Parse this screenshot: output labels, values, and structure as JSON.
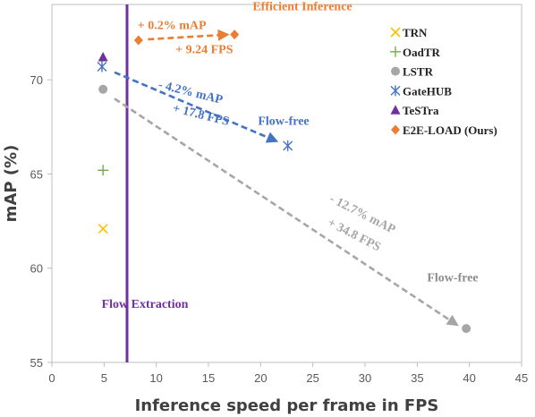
{
  "chart_data": {
    "type": "scatter",
    "xlabel": "Inference speed per frame in FPS",
    "ylabel": "mAP (%)",
    "xlim": [
      0,
      45
    ],
    "ylim": [
      55,
      74
    ],
    "x_ticks": [
      "0",
      "5",
      "10",
      "15",
      "20",
      "25",
      "30",
      "35",
      "40",
      "45"
    ],
    "y_ticks": [
      "55",
      "60",
      "65",
      "70"
    ],
    "grid": false,
    "legend_position": "top-right",
    "series": [
      {
        "name": "TRN",
        "marker": "x",
        "color": "#FFC000",
        "points": [
          {
            "x": 4.9,
            "y": 62.1
          }
        ]
      },
      {
        "name": "OadTR",
        "marker": "plus",
        "color": "#70AD47",
        "points": [
          {
            "x": 4.9,
            "y": 65.2
          }
        ]
      },
      {
        "name": "LSTR",
        "marker": "circle",
        "color": "#A6A6A6",
        "points": [
          {
            "x": 4.9,
            "y": 69.5
          },
          {
            "x": 39.7,
            "y": 56.8
          }
        ]
      },
      {
        "name": "GateHUB",
        "marker": "asterisk",
        "color": "#4472C4",
        "points": [
          {
            "x": 4.8,
            "y": 70.7
          },
          {
            "x": 22.6,
            "y": 66.5
          }
        ]
      },
      {
        "name": "TeSTra",
        "marker": "triangle",
        "color": "#7030A0",
        "points": [
          {
            "x": 4.9,
            "y": 71.2
          }
        ]
      },
      {
        "name": "E2E-LOAD (Ours)",
        "marker": "diamond",
        "color": "#ED7D31",
        "points": [
          {
            "x": 8.3,
            "y": 72.1
          },
          {
            "x": 17.5,
            "y": 72.4
          }
        ]
      }
    ],
    "vertical_line": {
      "x": 7.2,
      "label": "Flow Extraction",
      "color": "#7030A0"
    },
    "arrows": [
      {
        "from": [
          9.2,
          72.15
        ],
        "to": [
          16.8,
          72.4
        ],
        "color": "#ED7D31"
      },
      {
        "from": [
          6.0,
          70.4
        ],
        "to": [
          21.5,
          66.75
        ],
        "color": "#4472C4"
      },
      {
        "from": [
          6.0,
          69.0
        ],
        "to": [
          38.8,
          57.0
        ],
        "color": "#A6A6A6"
      }
    ],
    "annotations": [
      {
        "text": "Efficient Inference",
        "x": 24.0,
        "y": 73.7,
        "color": "#ED7D31",
        "rotate": 0
      },
      {
        "text": "+ 0.2% mAP",
        "x": 11.5,
        "y": 72.7,
        "color": "#ED7D31",
        "rotate": 0
      },
      {
        "text": "+ 9.24 FPS",
        "x": 14.6,
        "y": 71.4,
        "color": "#ED7D31",
        "rotate": 0
      },
      {
        "text": "- 4.2% mAP",
        "x": 13.2,
        "y": 69.15,
        "color": "#4472C4",
        "rotate": 14
      },
      {
        "text": "+ 17.8 FPS",
        "x": 14.2,
        "y": 67.95,
        "color": "#4472C4",
        "rotate": 14
      },
      {
        "text": "Flow-free",
        "x": 22.2,
        "y": 67.6,
        "color": "#4472C4",
        "rotate": 0
      },
      {
        "text": "- 12.7% mAP",
        "x": 29.6,
        "y": 62.7,
        "color": "#A6A6A6",
        "rotate": 27
      },
      {
        "text": "+ 34.8 FPS",
        "x": 28.8,
        "y": 61.6,
        "color": "#A6A6A6",
        "rotate": 27
      },
      {
        "text": "Flow-free",
        "x": 38.4,
        "y": 59.3,
        "color": "#8C8C8C",
        "rotate": 0
      }
    ]
  }
}
